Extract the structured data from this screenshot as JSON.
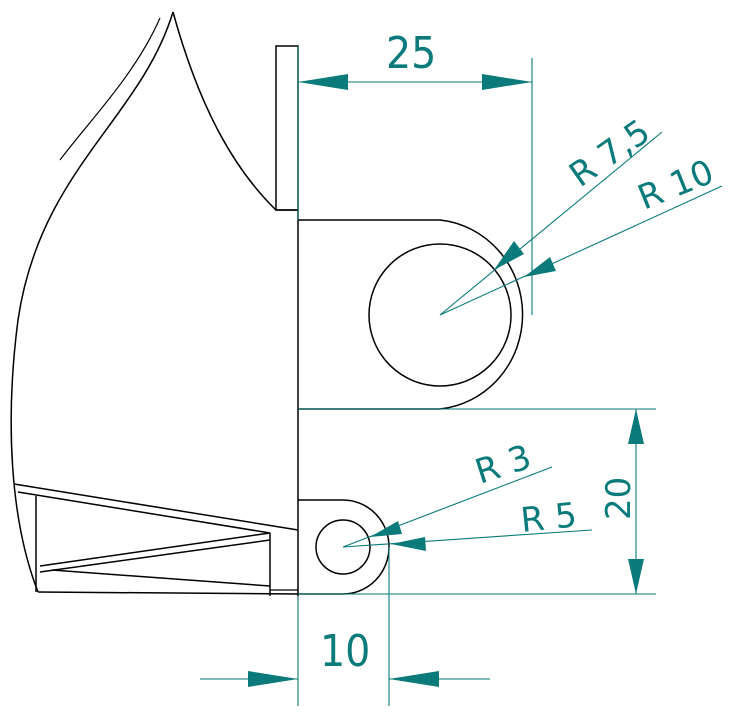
{
  "drawing": {
    "dimensions": {
      "width_top": "25",
      "width_bottom": "10",
      "height_right": "20",
      "radius_large_inner": "R 7,5",
      "radius_large_outer": "R 10",
      "radius_small_inner": "R 3",
      "radius_small_outer": "R 5"
    },
    "colors": {
      "dimension": "#0a7a7a",
      "geometry": "#000000",
      "background": "#ffffff"
    }
  }
}
